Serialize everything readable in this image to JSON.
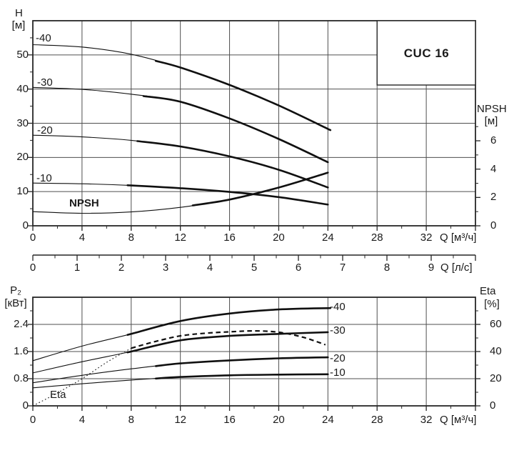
{
  "title": "CUC 16",
  "axes": {
    "h_label": "H",
    "h_unit": "[м]",
    "npsh_label": "NPSH",
    "npsh_unit": "[м]",
    "p2_label": "P₂",
    "p2_unit": "[кВт]",
    "eta_label": "Eta",
    "eta_unit": "[%]",
    "q_m3h_label": "Q [м³/ч]",
    "q_ls_label": "Q [л/с]"
  },
  "annotations": {
    "npsh_curve_label": "NPSH",
    "eta_curve_label": "Eta"
  },
  "chart_data": [
    {
      "type": "line",
      "title": "CUC 16",
      "xlabel": "Q [м³/ч]",
      "x2label": "Q [л/с]",
      "ylabel": "H [м]",
      "y2label": "NPSH [м]",
      "xlim": [
        0,
        36
      ],
      "ylim": [
        0,
        60
      ],
      "y2_scale_note": "NPSH axis: 2 м per division, zero aligned with H=0",
      "grid": true,
      "x_ticks": [
        0,
        4,
        8,
        12,
        16,
        20,
        24,
        28,
        32
      ],
      "x2_ticks": [
        0,
        1,
        2,
        3,
        4,
        5,
        6,
        7,
        8,
        9
      ],
      "y_ticks": [
        0,
        10,
        20,
        30,
        40,
        50
      ],
      "y2_ticks": [
        0,
        2,
        4,
        6
      ],
      "series": [
        {
          "name": "-40",
          "axis": "left",
          "bold_from_q": 10,
          "points": [
            [
              0,
              53
            ],
            [
              4,
              52.3
            ],
            [
              8,
              50.2
            ],
            [
              12,
              46.3
            ],
            [
              16,
              41.2
            ],
            [
              20,
              35.2
            ],
            [
              24.2,
              28
            ]
          ]
        },
        {
          "name": "-30",
          "axis": "left",
          "bold_from_q": 9,
          "points": [
            [
              0,
              40.5
            ],
            [
              4,
              39.9
            ],
            [
              8,
              38.5
            ],
            [
              12,
              36.3
            ],
            [
              16,
              31.4
            ],
            [
              20,
              25.4
            ],
            [
              24,
              18.6
            ]
          ]
        },
        {
          "name": "-20",
          "axis": "left",
          "bold_from_q": 8.5,
          "points": [
            [
              0,
              26.5
            ],
            [
              4,
              26
            ],
            [
              8,
              25
            ],
            [
              12,
              23.2
            ],
            [
              16,
              20.3
            ],
            [
              20,
              16.4
            ],
            [
              24,
              11.2
            ]
          ]
        },
        {
          "name": "-10",
          "axis": "left",
          "bold_from_q": 8,
          "points": [
            [
              0,
              12.5
            ],
            [
              4,
              12.3
            ],
            [
              8,
              11.8
            ],
            [
              12,
              11
            ],
            [
              16,
              9.9
            ],
            [
              20,
              8.4
            ],
            [
              24,
              6.2
            ]
          ]
        },
        {
          "name": "NPSH",
          "axis": "right",
          "bold_from_q": 13,
          "points": [
            [
              0,
              1.0
            ],
            [
              4,
              0.88
            ],
            [
              8,
              0.98
            ],
            [
              12,
              1.3
            ],
            [
              16,
              1.85
            ],
            [
              20,
              2.7
            ],
            [
              24,
              3.75
            ]
          ]
        }
      ]
    },
    {
      "type": "line",
      "xlabel": "Q [м³/ч]",
      "ylabel": "P₂ [кВт]",
      "y2label": "Eta [%]",
      "xlim": [
        0,
        36
      ],
      "ylim": [
        0,
        3.2
      ],
      "y2lim": [
        0,
        80
      ],
      "grid": true,
      "x_ticks": [
        0,
        4,
        8,
        12,
        16,
        20,
        24,
        28,
        32
      ],
      "y_ticks": [
        0,
        0.8,
        1.6,
        2.4
      ],
      "y2_ticks": [
        0,
        20,
        40,
        60
      ],
      "series": [
        {
          "name": "-40",
          "axis": "left",
          "bold_from_q": 8,
          "points": [
            [
              0,
              1.33
            ],
            [
              4,
              1.76
            ],
            [
              8,
              2.12
            ],
            [
              12,
              2.5
            ],
            [
              16,
              2.72
            ],
            [
              20,
              2.84
            ],
            [
              24.2,
              2.88
            ]
          ]
        },
        {
          "name": "-30",
          "axis": "left",
          "bold_from_q": 8,
          "points": [
            [
              0,
              0.97
            ],
            [
              4,
              1.3
            ],
            [
              8,
              1.6
            ],
            [
              12,
              1.93
            ],
            [
              16,
              2.06
            ],
            [
              20,
              2.12
            ],
            [
              24,
              2.17
            ]
          ]
        },
        {
          "name": "-20",
          "axis": "left",
          "bold_from_q": 10,
          "points": [
            [
              0,
              0.68
            ],
            [
              4,
              0.9
            ],
            [
              8,
              1.09
            ],
            [
              12,
              1.25
            ],
            [
              16,
              1.34
            ],
            [
              20,
              1.4
            ],
            [
              24,
              1.43
            ]
          ]
        },
        {
          "name": "-10",
          "axis": "left",
          "bold_from_q": 10,
          "points": [
            [
              0,
              0.53
            ],
            [
              4,
              0.65
            ],
            [
              8,
              0.76
            ],
            [
              12,
              0.85
            ],
            [
              16,
              0.9
            ],
            [
              20,
              0.92
            ],
            [
              24,
              0.93
            ]
          ]
        },
        {
          "name": "Eta",
          "axis": "right",
          "style": "dotted",
          "points": [
            [
              0,
              0
            ],
            [
              2,
              9.5
            ],
            [
              4,
              20
            ],
            [
              6,
              32
            ],
            [
              8,
              42.5
            ]
          ]
        },
        {
          "name": "Eta",
          "axis": "right",
          "style": "dashed",
          "points": [
            [
              8,
              42.5
            ],
            [
              10,
              47.5
            ],
            [
              12,
              51.5
            ],
            [
              14,
              53.5
            ],
            [
              16,
              54.5
            ],
            [
              18,
              55.2
            ],
            [
              20,
              54.2
            ],
            [
              22,
              50.5
            ],
            [
              23.8,
              45
            ]
          ]
        }
      ]
    }
  ]
}
